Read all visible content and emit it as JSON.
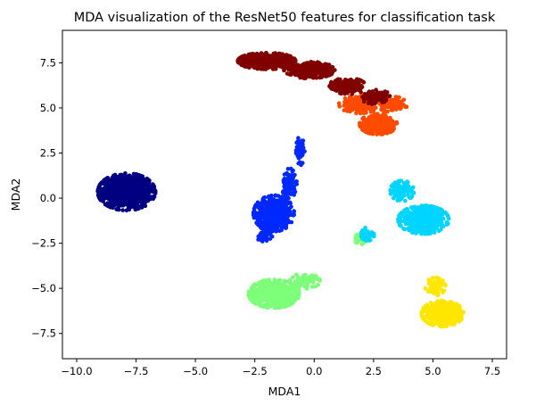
{
  "chart_data": {
    "type": "scatter",
    "title": "MDA visualization of the ResNet50 features for classification task",
    "xlabel": "MDA1",
    "ylabel": "MDA2",
    "xlim": [
      -10.6,
      8.1
    ],
    "ylim": [
      -8.9,
      9.3
    ],
    "xticks": [
      -10.0,
      -7.5,
      -5.0,
      -2.5,
      0.0,
      2.5,
      5.0,
      7.5
    ],
    "xtick_labels": [
      "−10.0",
      "−7.5",
      "−5.0",
      "−2.5",
      "0.0",
      "2.5",
      "5.0",
      "7.5"
    ],
    "yticks": [
      -7.5,
      -5.0,
      -2.5,
      0.0,
      2.5,
      5.0,
      7.5
    ],
    "ytick_labels": [
      "−7.5",
      "−5.0",
      "−2.5",
      "0.0",
      "2.5",
      "5.0",
      "7.5"
    ],
    "grid": false,
    "legend": "none",
    "series": [
      {
        "color": "#000080",
        "clusters": [
          {
            "center": [
              -7.9,
              0.35
            ],
            "spread": [
              0.85,
              0.72
            ],
            "n": 950
          }
        ]
      },
      {
        "color": "#0028ff",
        "clusters": [
          {
            "center": [
              -1.7,
              -0.85
            ],
            "spread": [
              0.6,
              0.7
            ],
            "n": 550
          },
          {
            "center": [
              -1.05,
              0.8
            ],
            "spread": [
              0.22,
              0.6
            ],
            "n": 110
          },
          {
            "center": [
              -0.6,
              2.6
            ],
            "spread": [
              0.14,
              0.55
            ],
            "n": 60
          },
          {
            "center": [
              -2.1,
              -2.0
            ],
            "spread": [
              0.25,
              0.3
            ],
            "n": 40
          }
        ]
      },
      {
        "color": "#7dff7a",
        "clusters": [
          {
            "center": [
              -1.7,
              -5.3
            ],
            "spread": [
              0.75,
              0.55
            ],
            "n": 700
          },
          {
            "center": [
              -0.4,
              -4.6
            ],
            "spread": [
              0.45,
              0.3
            ],
            "n": 80
          },
          {
            "center": [
              2.0,
              -2.2
            ],
            "spread": [
              0.3,
              0.25
            ],
            "n": 50
          }
        ]
      },
      {
        "color": "#00d5ff",
        "clusters": [
          {
            "center": [
              4.6,
              -1.2
            ],
            "spread": [
              0.75,
              0.55
            ],
            "n": 650
          },
          {
            "center": [
              3.7,
              0.4
            ],
            "spread": [
              0.35,
              0.4
            ],
            "n": 110
          },
          {
            "center": [
              2.2,
              -2.0
            ],
            "spread": [
              0.3,
              0.25
            ],
            "n": 40
          }
        ]
      },
      {
        "color": "#ffe600",
        "clusters": [
          {
            "center": [
              5.4,
              -6.4
            ],
            "spread": [
              0.62,
              0.5
            ],
            "n": 550
          },
          {
            "center": [
              5.1,
              -4.9
            ],
            "spread": [
              0.3,
              0.35
            ],
            "n": 80
          }
        ]
      },
      {
        "color": "#ff4a00",
        "clusters": [
          {
            "center": [
              2.7,
              4.1
            ],
            "spread": [
              0.55,
              0.4
            ],
            "n": 400
          },
          {
            "center": [
              1.9,
              5.2
            ],
            "spread": [
              0.6,
              0.35
            ],
            "n": 200
          },
          {
            "center": [
              3.3,
              5.2
            ],
            "spread": [
              0.45,
              0.3
            ],
            "n": 120
          }
        ]
      },
      {
        "color": "#800000",
        "clusters": [
          {
            "center": [
              -2.0,
              7.6
            ],
            "spread": [
              0.85,
              0.32
            ],
            "n": 600
          },
          {
            "center": [
              -0.2,
              7.1
            ],
            "spread": [
              0.75,
              0.32
            ],
            "n": 450
          },
          {
            "center": [
              1.4,
              6.2
            ],
            "spread": [
              0.55,
              0.32
            ],
            "n": 250
          },
          {
            "center": [
              2.6,
              5.6
            ],
            "spread": [
              0.45,
              0.28
            ],
            "n": 120
          }
        ]
      }
    ]
  }
}
